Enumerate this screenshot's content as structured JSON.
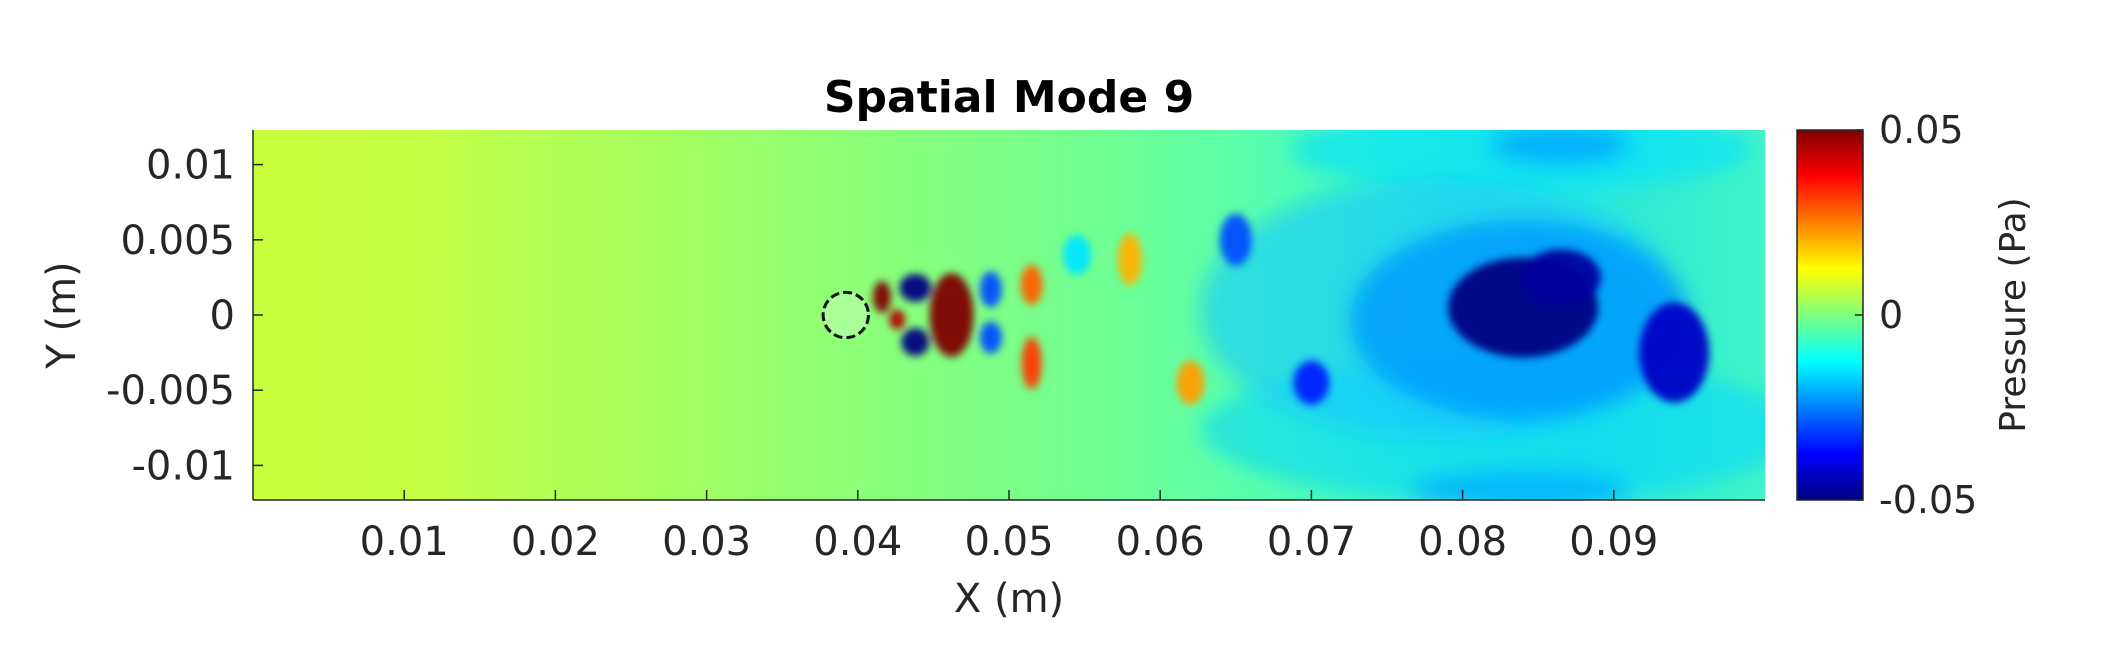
{
  "chart_data": {
    "type": "heatmap",
    "title": "Spatial Mode 9",
    "xlabel": "X (m)",
    "ylabel": "Y (m)",
    "xlim": [
      0,
      0.1
    ],
    "ylim": [
      -0.0123,
      0.0123
    ],
    "x_ticks": [
      0.01,
      0.02,
      0.03,
      0.04,
      0.05,
      0.06,
      0.07,
      0.08,
      0.09
    ],
    "x_tick_labels": [
      "0.01",
      "0.02",
      "0.03",
      "0.04",
      "0.05",
      "0.06",
      "0.07",
      "0.08",
      "0.09"
    ],
    "y_ticks": [
      0.01,
      0.005,
      0,
      -0.005,
      -0.01
    ],
    "y_tick_labels": [
      "0.01",
      "0.005",
      "0",
      "-0.005",
      "-0.01"
    ],
    "colormap": "jet",
    "colorbar": {
      "label": "Pressure (Pa)",
      "limits": [
        -0.05,
        0.05
      ],
      "ticks": [
        0.05,
        0,
        -0.05
      ],
      "tick_labels": [
        "0.05",
        "0",
        "-0.05"
      ]
    },
    "cylinder": {
      "center_x": 0.04,
      "center_y": 0.0,
      "diameter": 0.003
    },
    "field_features": [
      {
        "x": 0.0,
        "y": 0.0,
        "value": 0.016,
        "note": "inlet plateau, yellow-green"
      },
      {
        "x": 0.0416,
        "y": 0.0012,
        "value": 0.05
      },
      {
        "x": 0.0426,
        "y": -0.0003,
        "value": 0.045
      },
      {
        "x": 0.0438,
        "y": 0.0018,
        "value": -0.05
      },
      {
        "x": 0.0438,
        "y": -0.0018,
        "value": -0.05
      },
      {
        "x": 0.0462,
        "y": 0.0,
        "value": 0.05
      },
      {
        "x": 0.0488,
        "y": 0.0017,
        "value": -0.03
      },
      {
        "x": 0.0488,
        "y": -0.0015,
        "value": -0.03
      },
      {
        "x": 0.0515,
        "y": 0.002,
        "value": 0.028
      },
      {
        "x": 0.0515,
        "y": -0.0032,
        "value": 0.032
      },
      {
        "x": 0.0545,
        "y": 0.004,
        "value": -0.015
      },
      {
        "x": 0.058,
        "y": 0.0037,
        "value": 0.02
      },
      {
        "x": 0.062,
        "y": -0.0045,
        "value": 0.022
      },
      {
        "x": 0.065,
        "y": 0.005,
        "value": -0.03
      },
      {
        "x": 0.07,
        "y": -0.0045,
        "value": -0.035
      },
      {
        "x": 0.084,
        "y": 0.0005,
        "value": -0.05
      },
      {
        "x": 0.0865,
        "y": 0.0025,
        "value": -0.047
      },
      {
        "x": 0.094,
        "y": -0.0025,
        "value": -0.043
      }
    ]
  }
}
